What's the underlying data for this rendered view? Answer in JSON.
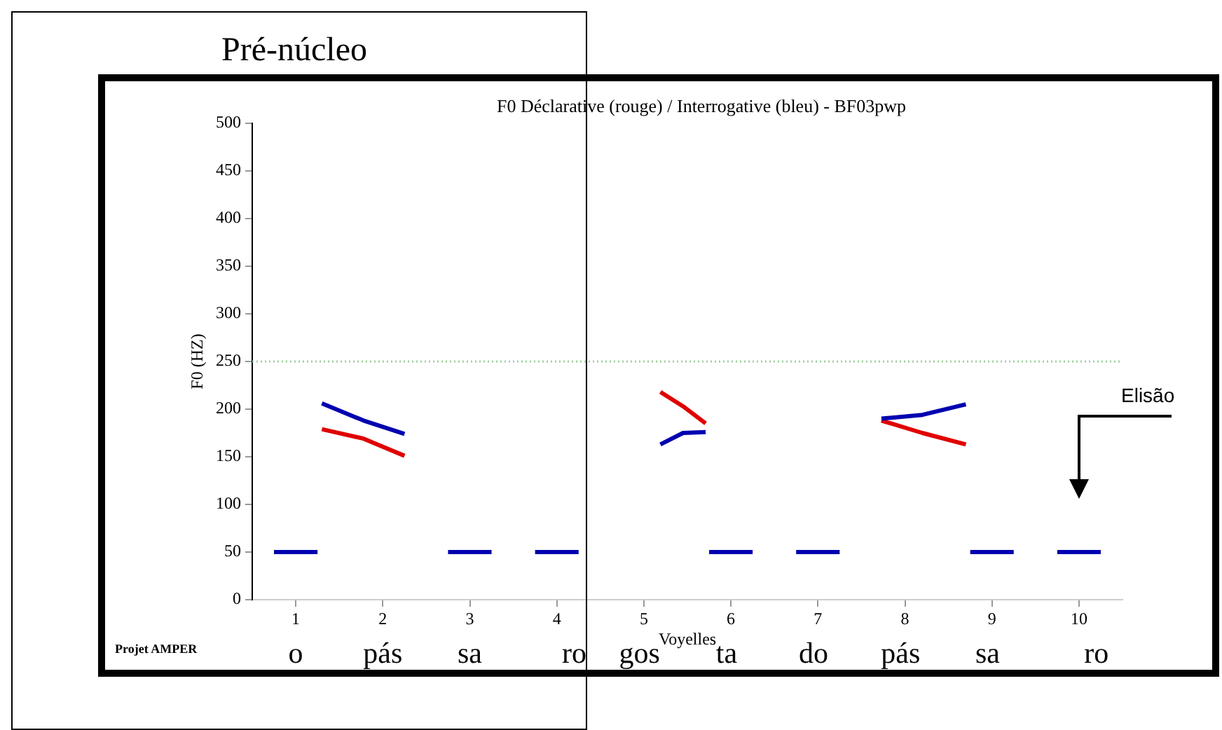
{
  "chart_data": {
    "type": "line",
    "title": "F0 Déclarative (rouge) / Interrogative (bleu) - BF03pwp",
    "xlabel": "Voyelles",
    "ylabel": "F0 (HZ)",
    "xlim": [
      0.5,
      10.5
    ],
    "xticks": [
      1,
      2,
      3,
      4,
      5,
      6,
      7,
      8,
      9,
      10
    ],
    "ylim": [
      0,
      500
    ],
    "yticks": [
      0,
      50,
      100,
      150,
      200,
      250,
      300,
      350,
      400,
      450,
      500
    ],
    "grid": false,
    "legend": false,
    "marker": "none",
    "line_style": "solid",
    "series": [
      {
        "color": "#0000b0",
        "x": [
          0.75,
          1.25,
          1.27,
          1.3,
          1.78,
          2.25,
          2.5,
          2.75,
          3.25,
          3.5,
          3.75,
          4.25,
          4.5,
          5.19,
          5.45,
          5.71,
          5.73,
          5.75,
          6.25,
          6.5,
          6.75,
          7.25,
          7.5,
          7.73,
          8.2,
          8.7,
          8.72,
          8.75,
          9.25,
          9.5,
          9.75,
          10.25
        ],
        "values": [
          50,
          50,
          null,
          206,
          188,
          174,
          null,
          50,
          50,
          null,
          50,
          50,
          null,
          163,
          175,
          176,
          null,
          50,
          50,
          null,
          50,
          50,
          null,
          190,
          194,
          205,
          null,
          50,
          50,
          null,
          50,
          50
        ]
      },
      {
        "color": "#e00000",
        "x": [
          1.3,
          1.78,
          2.25,
          2.5,
          5.19,
          5.45,
          5.71,
          6,
          7.73,
          8.2,
          8.7
        ],
        "values": [
          179,
          169,
          151,
          null,
          218,
          203,
          185,
          null,
          188,
          175,
          163
        ]
      }
    ],
    "ref_lines": [
      {
        "axis": "y",
        "value": 250,
        "color": "#a0d0a0",
        "line_style": "dotted"
      }
    ],
    "annotations": [
      "Pré-núcleo",
      "Projet AMPER",
      "Elisão",
      "o",
      "pás",
      "sa",
      "ro",
      "gos",
      "ta",
      "do",
      "pás",
      "sa",
      "ro"
    ]
  }
}
